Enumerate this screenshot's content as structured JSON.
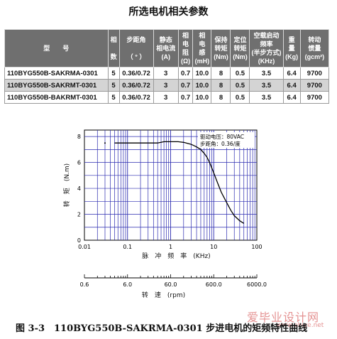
{
  "title": "所选电机相关参数",
  "table": {
    "headers": [
      [
        "型　　号"
      ],
      [
        "相",
        "",
        "数"
      ],
      [
        "步距角",
        "",
        "（ ° ）"
      ],
      [
        "静态",
        "相电流",
        "(A)"
      ],
      [
        "相",
        "电",
        "阻",
        "(Ω)"
      ],
      [
        "相",
        "电",
        "感",
        "(mH)"
      ],
      [
        "保持",
        "转矩",
        "(Nm)"
      ],
      [
        "定位",
        "转矩",
        "(Nm)"
      ],
      [
        "空载启动",
        "频率",
        "(半步方式)",
        "(KHz)"
      ],
      [
        "重",
        "量",
        "(Kg)"
      ],
      [
        "转动",
        "惯量",
        "(gcm²)"
      ]
    ],
    "rows": [
      [
        "110BYG550B-SAKRMA-0301",
        "5",
        "0.36/0.72",
        "3",
        "0.7",
        "10.0",
        "8",
        "0.5",
        "3.5",
        "6.4",
        "9700"
      ],
      [
        "110BYG550B-SAKRMT-0301",
        "5",
        "0.36/0.72",
        "3",
        "0.7",
        "10.0",
        "8",
        "0.5",
        "3.5",
        "6.4",
        "9700"
      ],
      [
        "110BYG550B-BAKRMT-0301",
        "5",
        "0.36/0.72",
        "3",
        "0.7",
        "10.0",
        "8",
        "0.5",
        "3.5",
        "6.4",
        "9700"
      ]
    ],
    "shaded_row": 1
  },
  "chart_data": {
    "type": "line",
    "x_scale": "log",
    "xlim": [
      0.01,
      100
    ],
    "ylim": [
      0,
      8.5
    ],
    "grid": true,
    "ylabel": "转　矩　(N.m)",
    "xlabel": "脉　冲　频　率　(KHz)",
    "x2label": "转　速　(rpm)",
    "y_ticks": [
      "0",
      "2",
      "4",
      "6",
      "8"
    ],
    "x_ticks": [
      "0.01",
      "0.1",
      "1",
      "10",
      "100"
    ],
    "x2_ticks": [
      "0.6",
      "6.0",
      "60.0",
      "600.0",
      "6000.0"
    ],
    "annotation": [
      "驱动电压：80VAC",
      "步距角：0.36/度"
    ],
    "series": [
      {
        "x": [
          0.05,
          0.06,
          0.08,
          0.1,
          0.15,
          0.2,
          0.3,
          0.5,
          0.7,
          1,
          1.5,
          2,
          3,
          4,
          5,
          6,
          7,
          8,
          10,
          12,
          15,
          20,
          25,
          30,
          40,
          50
        ],
        "y": [
          7.5,
          7.5,
          7.5,
          7.5,
          7.5,
          7.5,
          7.5,
          7.5,
          7.6,
          7.6,
          7.6,
          7.55,
          7.4,
          7.2,
          7.0,
          6.7,
          6.4,
          6.0,
          5.2,
          4.5,
          3.7,
          2.9,
          2.3,
          1.9,
          1.5,
          1.3
        ]
      }
    ],
    "markers": {
      "x": [
        0.03
      ],
      "y": [
        7.5
      ]
    }
  },
  "caption": "图 3-3　110BYG550B-SAKRMA-0301 步进电机的矩频特性曲线",
  "watermark": [
    "爱毕业设计网",
    "www.abiye.net"
  ],
  "colors": {
    "header_bg": "#6f6f6f",
    "grid": "#2b2bb0",
    "curve": "#000000"
  }
}
